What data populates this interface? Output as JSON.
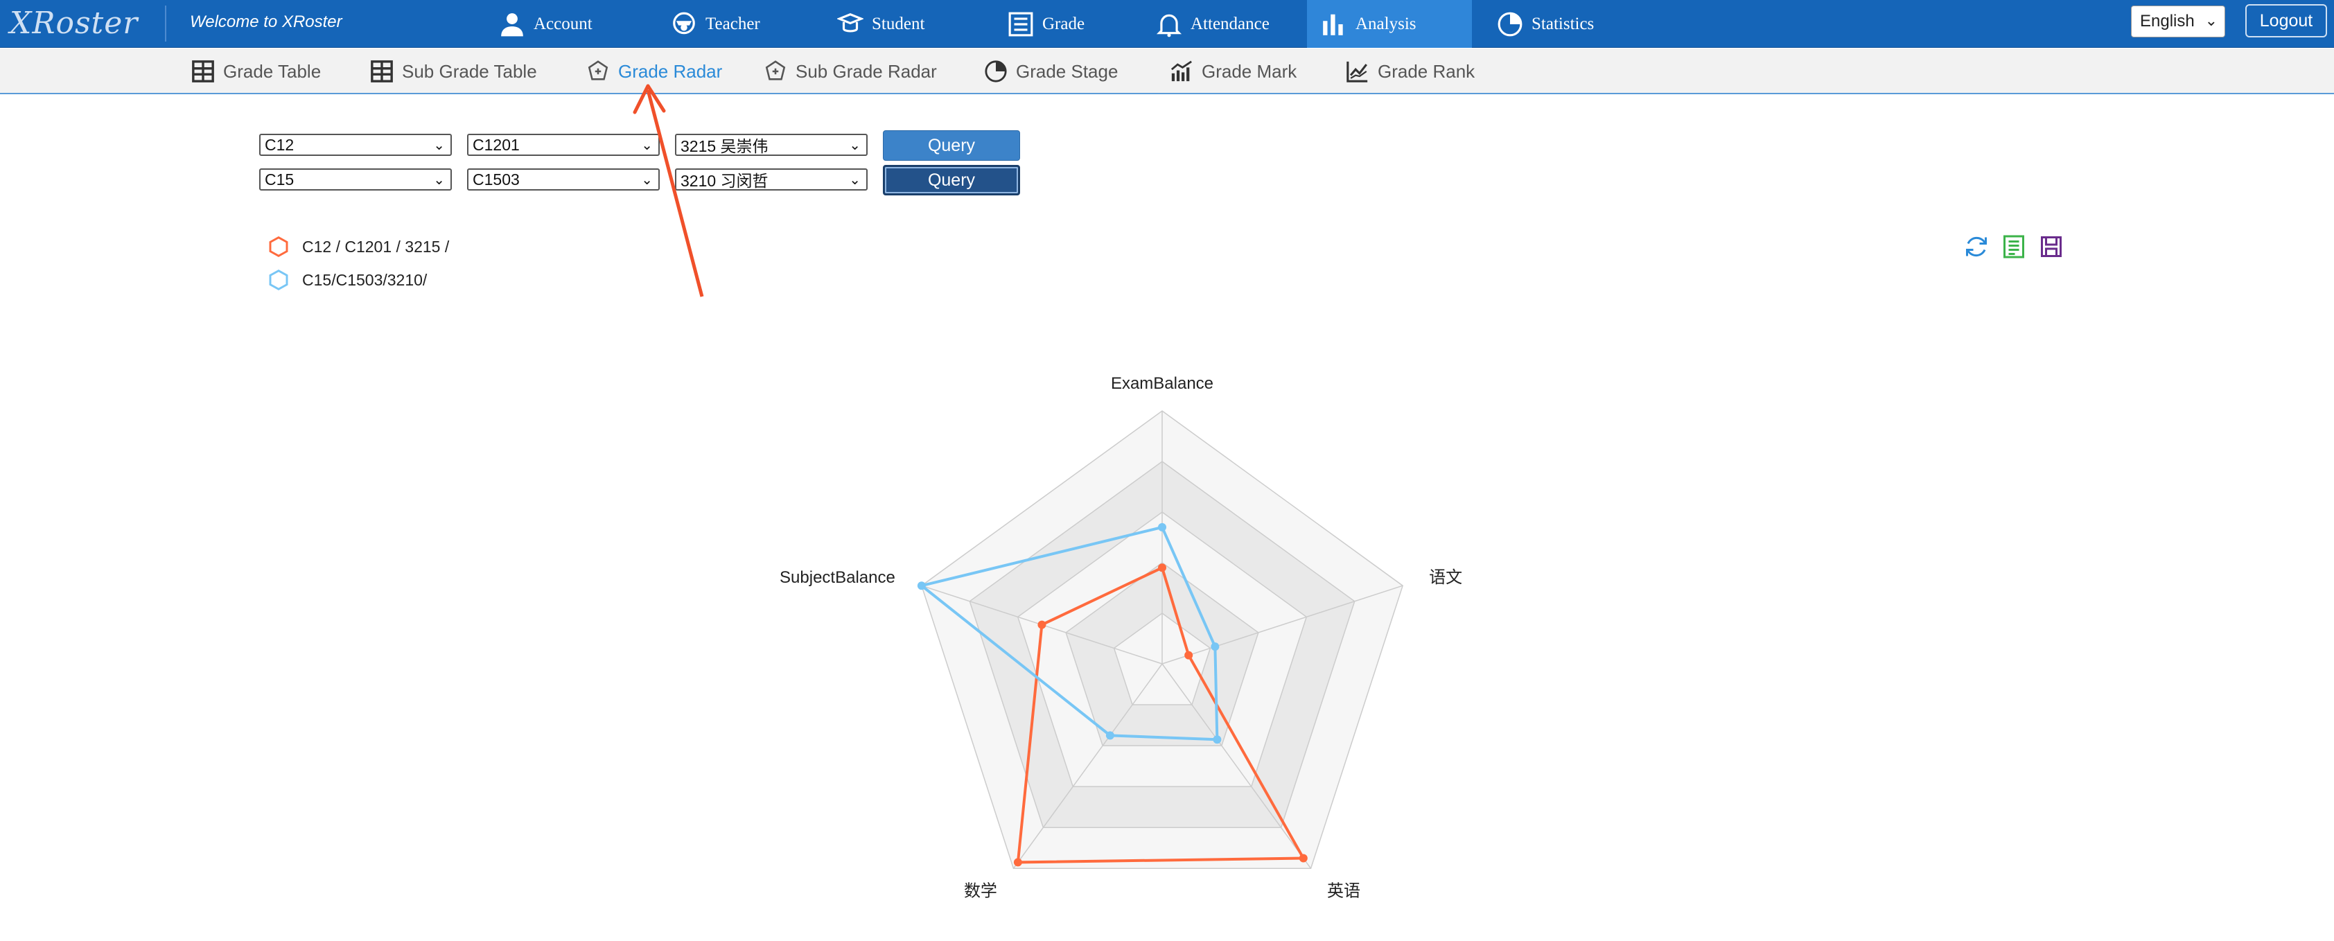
{
  "app": {
    "logo_text": "XRoster",
    "welcome": "Welcome to XRoster"
  },
  "topnav": [
    {
      "label": "Account",
      "icon": "user-icon"
    },
    {
      "label": "Teacher",
      "icon": "teacher-icon"
    },
    {
      "label": "Student",
      "icon": "student-icon"
    },
    {
      "label": "Grade",
      "icon": "grade-list-icon"
    },
    {
      "label": "Attendance",
      "icon": "bell-icon"
    },
    {
      "label": "Analysis",
      "icon": "bar-chart-icon",
      "active": true
    },
    {
      "label": "Statistics",
      "icon": "pie-chart-icon"
    }
  ],
  "language": {
    "selected": "English"
  },
  "logout_label": "Logout",
  "subnav": [
    {
      "label": "Grade Table",
      "icon": "table-icon"
    },
    {
      "label": "Sub Grade Table",
      "icon": "table-icon"
    },
    {
      "label": "Grade Radar",
      "icon": "radar-icon",
      "active": true
    },
    {
      "label": "Sub Grade Radar",
      "icon": "radar-icon"
    },
    {
      "label": "Grade Stage",
      "icon": "pie-icon"
    },
    {
      "label": "Grade Mark",
      "icon": "bar-line-icon"
    },
    {
      "label": "Grade Rank",
      "icon": "line-chart-icon"
    }
  ],
  "query_rows": [
    {
      "grade": "C12",
      "class": "C1201",
      "student": "3215 吴崇伟",
      "button": "Query"
    },
    {
      "grade": "C15",
      "class": "C1503",
      "student": "3210 习闵哲",
      "button": "Query"
    }
  ],
  "legend": [
    {
      "label": "C12 / C1201 / 3215 /",
      "color": "#ff6a3d"
    },
    {
      "label": "C15/C1503/3210/",
      "color": "#78c6f5"
    }
  ],
  "tool_icons": [
    "refresh-icon",
    "data-view-icon",
    "save-image-icon"
  ],
  "colors": {
    "topbar": "#1565b8",
    "active_tab": "#2f86d9",
    "series1": "#ff6a3d",
    "series2": "#78c6f5",
    "annotation_arrow": "#f0502a"
  },
  "chart_data": {
    "type": "radar",
    "indicators": [
      "ExamBalance",
      "语文",
      "英语",
      "数学",
      "SubjectBalance"
    ],
    "max": 100,
    "series": [
      {
        "name": "C12 / C1201 / 3215 /",
        "values": [
          38,
          11,
          95,
          97,
          50
        ]
      },
      {
        "name": "C15/C1503/3210/",
        "values": [
          54,
          22,
          37,
          35,
          100
        ]
      }
    ]
  }
}
